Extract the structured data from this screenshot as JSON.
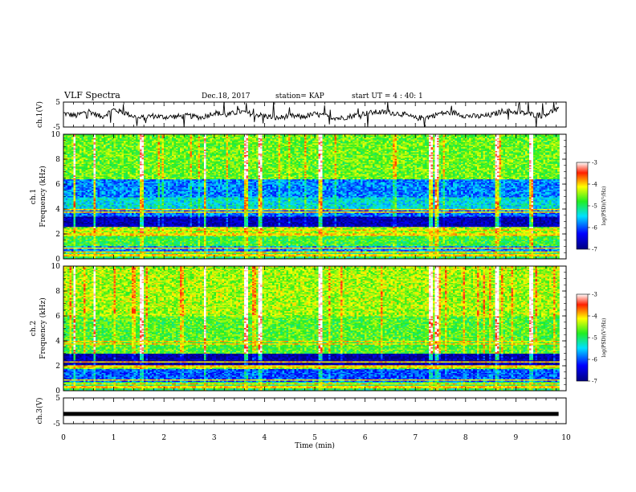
{
  "header": {
    "title": "VLF Spectra",
    "date": "Dec.18, 2017",
    "station": "station= KAP",
    "start": "start  UT =   4 : 40: 1"
  },
  "chart_data": [
    {
      "type": "line",
      "name": "ch1-waveform",
      "ylabel": "ch.1(V)",
      "ylim": [
        -5,
        5
      ],
      "yticks": [
        "5",
        "-5"
      ],
      "xlim": [
        0,
        10
      ],
      "x": [
        0.0,
        0.25,
        0.5,
        0.75,
        1.0,
        1.25,
        1.5,
        1.75,
        2.0,
        2.25,
        2.5,
        2.75,
        3.0,
        3.25,
        3.5,
        3.75,
        4.0,
        4.25,
        4.5,
        4.75,
        5.0,
        5.25,
        5.5,
        5.75,
        6.0,
        6.25,
        6.5,
        6.75,
        7.0,
        7.25,
        7.5,
        7.75,
        8.0,
        8.25,
        8.5,
        8.75,
        9.0,
        9.25,
        9.5,
        9.75,
        9.85
      ],
      "y": [
        0.5,
        -0.5,
        1.5,
        -1.0,
        2.0,
        0.5,
        -1.5,
        -0.5,
        -1.0,
        -0.8,
        -0.5,
        -1.2,
        0.8,
        -0.2,
        1.2,
        0.3,
        -0.5,
        -1.5,
        -0.5,
        -1.0,
        0.2,
        -0.8,
        -1.5,
        -0.5,
        0.5,
        1.0,
        0.8,
        0.2,
        -1.5,
        -1.0,
        0.5,
        0.8,
        -0.5,
        -0.8,
        -0.3,
        1.5,
        1.0,
        0.3,
        -0.5,
        1.5,
        2.0
      ]
    },
    {
      "type": "heatmap",
      "name": "ch1-spectrogram",
      "ylabel": "ch.1 Frequency (kHz)",
      "ylim": [
        0,
        10
      ],
      "yticks": [
        "0",
        "2",
        "4",
        "6",
        "8",
        "10"
      ],
      "xlim": [
        0,
        10
      ],
      "colorbar": {
        "label": "log(PSD)(V²/Hz)",
        "range": [
          -7,
          -3
        ],
        "ticks": [
          "-3",
          "-4",
          "-5",
          "-6",
          "-7"
        ]
      },
      "bands_khz": [
        {
          "from": 0.0,
          "to": 0.6,
          "level": -5.0
        },
        {
          "from": 0.6,
          "to": 1.0,
          "level": -5.8
        },
        {
          "from": 1.0,
          "to": 1.9,
          "level": -4.8
        },
        {
          "from": 1.9,
          "to": 2.6,
          "level": -4.4
        },
        {
          "from": 2.6,
          "to": 3.4,
          "level": -6.7
        },
        {
          "from": 3.4,
          "to": 4.0,
          "level": -5.9
        },
        {
          "from": 4.0,
          "to": 5.0,
          "level": -5.4
        },
        {
          "from": 5.0,
          "to": 6.4,
          "level": -5.8
        },
        {
          "from": 6.4,
          "to": 10.0,
          "level": -4.6
        }
      ],
      "bright_times_min": [
        0.2,
        0.6,
        1.55,
        2.8,
        3.6,
        3.9,
        5.1,
        7.3,
        7.4,
        8.6,
        9.3
      ]
    },
    {
      "type": "heatmap",
      "name": "ch2-spectrogram",
      "ylabel": "ch.2 Frequency (kHz)",
      "ylim": [
        0,
        10
      ],
      "yticks": [
        "0",
        "2",
        "4",
        "6",
        "8",
        "10"
      ],
      "xlim": [
        0,
        10
      ],
      "colorbar": {
        "label": "log(PSD)(V²/Hz)",
        "range": [
          -7,
          -3
        ],
        "ticks": [
          "-3",
          "-4",
          "-5",
          "-6",
          "-7"
        ]
      },
      "bands_khz": [
        {
          "from": 0.0,
          "to": 0.7,
          "level": -5.0
        },
        {
          "from": 0.7,
          "to": 1.8,
          "level": -6.0
        },
        {
          "from": 1.8,
          "to": 2.1,
          "level": -4.6
        },
        {
          "from": 2.1,
          "to": 3.0,
          "level": -6.8
        },
        {
          "from": 3.0,
          "to": 6.0,
          "level": -4.7
        },
        {
          "from": 6.0,
          "to": 10.0,
          "level": -4.4
        }
      ],
      "bright_times_min": [
        0.2,
        0.6,
        1.55,
        2.8,
        3.6,
        3.9,
        5.1,
        7.3,
        7.4,
        8.6,
        9.3
      ]
    },
    {
      "type": "line",
      "name": "ch3-waveform",
      "ylabel": "ch.3(V)",
      "ylim": [
        -5,
        5
      ],
      "yticks": [
        "5",
        "-5"
      ],
      "xlim": [
        0,
        10
      ],
      "x": [
        0,
        9.85
      ],
      "y": [
        -1.2,
        -1.2
      ]
    }
  ],
  "x_axis": {
    "label": "Time  (min)",
    "ticks": [
      "0",
      "1",
      "2",
      "3",
      "4",
      "5",
      "6",
      "7",
      "8",
      "9",
      "10"
    ]
  },
  "colors": {
    "axis": "#000000",
    "background": "#ffffff"
  }
}
